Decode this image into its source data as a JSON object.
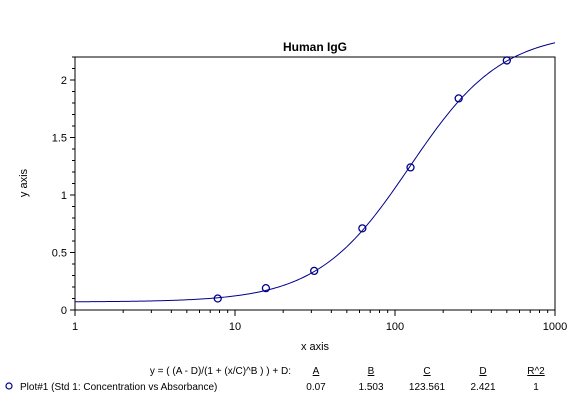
{
  "chart_data": {
    "type": "scatter",
    "title": "Human IgG",
    "xlabel": "x axis",
    "ylabel": "y axis",
    "xscale": "log",
    "xlim": [
      1,
      1000
    ],
    "ylim": [
      0,
      2.2
    ],
    "xticks": [
      1,
      10,
      100,
      1000
    ],
    "xtick_labels": [
      "1",
      "10",
      "100",
      "1000"
    ],
    "yticks": [
      0,
      0.5,
      1,
      1.5,
      2
    ],
    "ytick_labels": [
      "0",
      "0.5",
      "1",
      "1.5",
      "2"
    ],
    "grid": false,
    "series": [
      {
        "x": [
          7.8,
          15.6,
          31.25,
          62.5,
          125,
          250,
          500
        ],
        "y": [
          0.1,
          0.19,
          0.34,
          0.71,
          1.24,
          1.84,
          2.17
        ],
        "color": "#00008b"
      }
    ],
    "fit": {
      "equation": "y = ( (A - D)/(1 + (x/C)^B ) ) + D:",
      "A": 0.07,
      "B": 1.503,
      "C": 123.561,
      "D": 2.421,
      "color": "#00008b"
    },
    "fit_table": {
      "headers": [
        "A",
        "B",
        "C",
        "D",
        "R^2"
      ],
      "row_label": "Plot#1 (Std 1: Concentration vs Absorbance)",
      "values": [
        "0.07",
        "1.503",
        "123.561",
        "2.421",
        "1"
      ]
    }
  }
}
